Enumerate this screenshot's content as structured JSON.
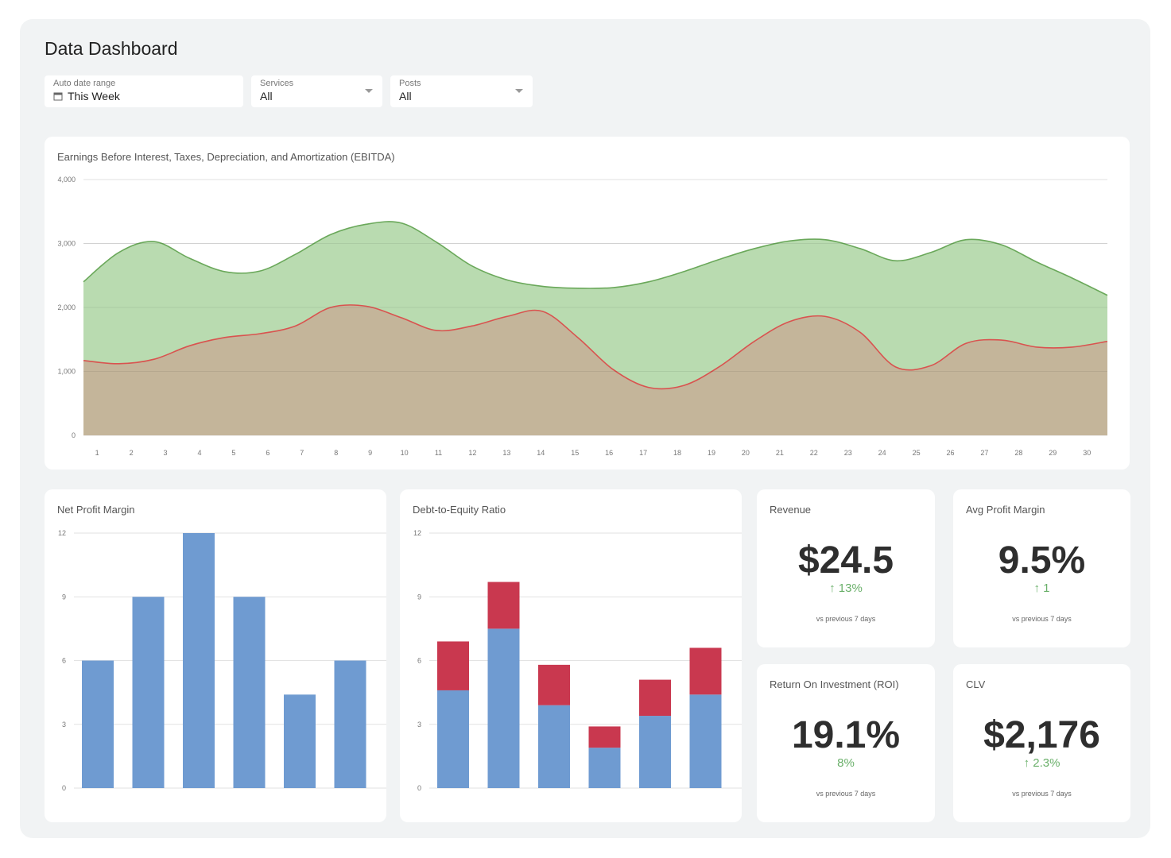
{
  "title": "Data Dashboard",
  "filters": [
    {
      "label": "Auto date range",
      "value": "This Week",
      "icon": "calendar-icon"
    },
    {
      "label": "Services",
      "value": "All",
      "icon": "caret-down-icon"
    },
    {
      "label": "Posts",
      "value": "All",
      "icon": "caret-down-icon"
    }
  ],
  "colors": {
    "green_line": "#6aa85a",
    "green_fill": "#b9dbb0",
    "red_line": "#d9534f",
    "red_fill": "#c4b59a",
    "bar_blue": "#6f9bd1",
    "bar_red": "#c9384f",
    "positive": "#6ab06a"
  },
  "chart_data": [
    {
      "type": "area",
      "title": "Earnings Before Interest, Taxes, Depreciation, and Amortization (EBITDA)",
      "x": [
        1,
        2,
        3,
        4,
        5,
        6,
        7,
        8,
        9,
        10,
        11,
        12,
        13,
        14,
        15,
        16,
        17,
        18,
        19,
        20,
        21,
        22,
        23,
        24,
        25,
        26,
        27,
        28,
        29,
        30
      ],
      "ylim": [
        0,
        4000
      ],
      "yticks": [
        "0",
        "1,000",
        "2,000",
        "3,000",
        "4,000"
      ],
      "grid": true,
      "series": [
        {
          "values": [
            2400,
            2860,
            3030,
            2770,
            2560,
            2570,
            2830,
            3140,
            3300,
            3320,
            3020,
            2650,
            2430,
            2330,
            2300,
            2310,
            2400,
            2560,
            2750,
            2920,
            3040,
            3060,
            2920,
            2730,
            2860,
            3060,
            2980,
            2710,
            2460,
            2190
          ]
        },
        {
          "values": [
            1170,
            1120,
            1190,
            1400,
            1530,
            1590,
            1710,
            2000,
            2020,
            1840,
            1640,
            1710,
            1860,
            1940,
            1530,
            1030,
            750,
            780,
            1070,
            1470,
            1780,
            1860,
            1610,
            1070,
            1090,
            1440,
            1490,
            1380,
            1380,
            1470
          ]
        }
      ]
    },
    {
      "type": "bar",
      "title": "Net Profit Margin",
      "ylim": [
        0,
        12
      ],
      "yticks": [
        "0",
        "3",
        "6",
        "9",
        "12"
      ],
      "grid": true,
      "values": [
        6,
        9,
        12,
        9,
        4.4,
        6
      ]
    },
    {
      "type": "bar",
      "stacked": true,
      "title": "Debt-to-Equity Ratio",
      "ylim": [
        0,
        12
      ],
      "yticks": [
        "0",
        "3",
        "6",
        "9",
        "12"
      ],
      "grid": true,
      "series": [
        {
          "values": [
            4.6,
            7.5,
            3.9,
            1.9,
            3.4,
            4.4
          ]
        },
        {
          "values": [
            2.3,
            2.2,
            1.9,
            1.0,
            1.7,
            2.2
          ]
        }
      ]
    }
  ],
  "kpis": [
    {
      "title": "Revenue",
      "value": "$24.5",
      "change": "↑ 13%",
      "compare": "vs previous 7 days"
    },
    {
      "title": "Avg Profit Margin",
      "value": "9.5%",
      "change": "↑ 1",
      "compare": "vs previous 7 days"
    },
    {
      "title": "Return On Investment (ROI)",
      "value": "19.1%",
      "change": "8%",
      "compare": "vs previous 7 days"
    },
    {
      "title": "CLV",
      "value": "$2,176",
      "change": "↑ 2.3%",
      "compare": "vs previous 7 days"
    }
  ]
}
